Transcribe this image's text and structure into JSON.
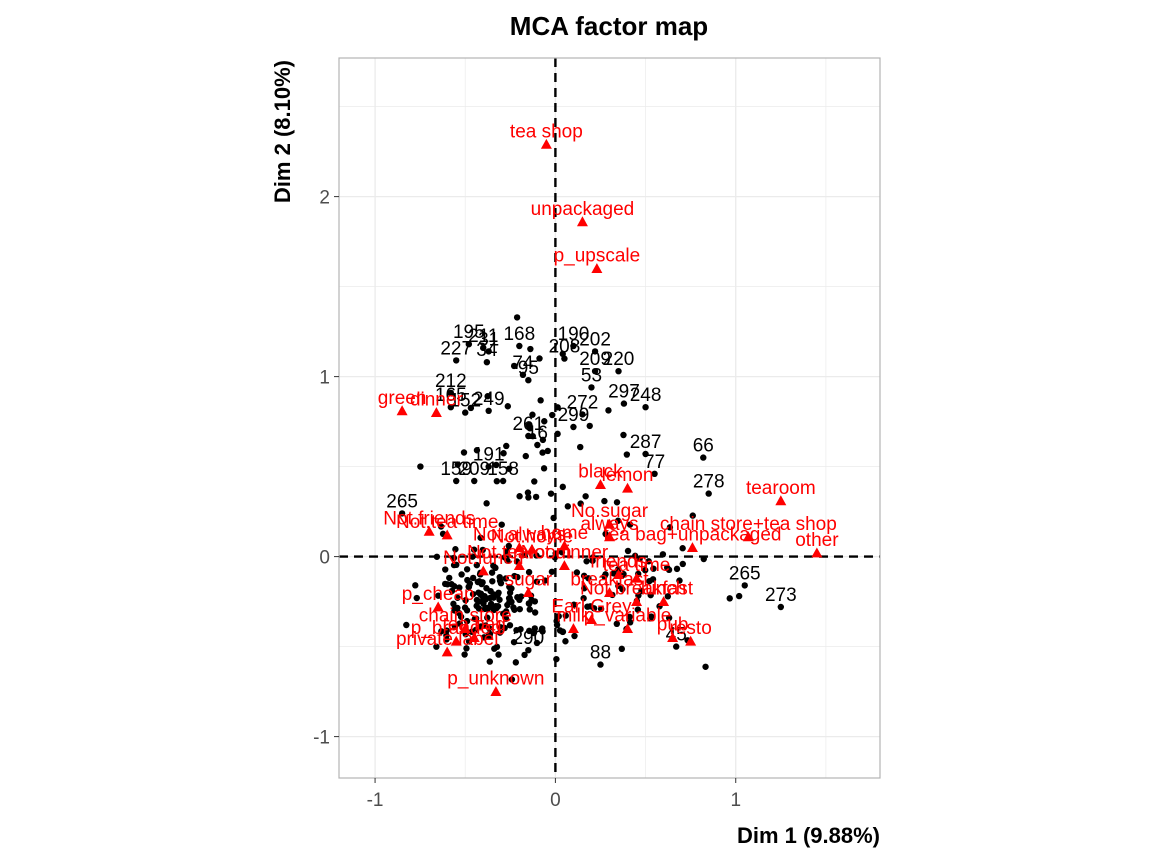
{
  "chart_data": {
    "type": "scatter",
    "title": "MCA factor map",
    "xlabel": "Dim 1 (9.88%)",
    "ylabel": "Dim 2 (8.10%)",
    "xlim": [
      -1.2,
      1.8
    ],
    "ylim": [
      -1.23,
      2.77
    ],
    "x_ticks": [
      -1,
      0,
      1
    ],
    "y_ticks": [
      -1,
      0,
      1,
      2
    ],
    "reference_lines": {
      "x": 0,
      "y": 0,
      "style": "dashed"
    },
    "grid": true,
    "colors": {
      "individuals": "#000000",
      "categories": "#ff0000",
      "grid": "#ebebeb",
      "panel_border": "#b3b3b3"
    },
    "categories_series": {
      "marker": "triangle",
      "points": [
        {
          "label": "tea shop",
          "x": -0.05,
          "y": 2.29
        },
        {
          "label": "unpackaged",
          "x": 0.15,
          "y": 1.86
        },
        {
          "label": "p_upscale",
          "x": 0.23,
          "y": 1.6
        },
        {
          "label": "green",
          "x": -0.85,
          "y": 0.81
        },
        {
          "label": "dinner",
          "x": -0.66,
          "y": 0.8
        },
        {
          "label": "tearoom",
          "x": 1.25,
          "y": 0.31
        },
        {
          "label": "chain store+tea shop",
          "x": 1.07,
          "y": 0.11
        },
        {
          "label": "tea bag+unpackaged",
          "x": 0.76,
          "y": 0.05
        },
        {
          "label": "other",
          "x": 1.45,
          "y": 0.02
        },
        {
          "label": "always",
          "x": 0.3,
          "y": 0.11
        },
        {
          "label": "home",
          "x": 0.05,
          "y": 0.06
        },
        {
          "label": "black",
          "x": 0.25,
          "y": 0.4
        },
        {
          "label": "lemon",
          "x": 0.4,
          "y": 0.38
        },
        {
          "label": "No.sugar",
          "x": 0.3,
          "y": 0.18
        },
        {
          "label": "Not.friends",
          "x": -0.7,
          "y": 0.14
        },
        {
          "label": "Not.tea time",
          "x": -0.6,
          "y": 0.12
        },
        {
          "label": "Not.always",
          "x": -0.2,
          "y": 0.05
        },
        {
          "label": "Not.home",
          "x": -0.13,
          "y": 0.04
        },
        {
          "label": "Not.tearoom",
          "x": -0.2,
          "y": -0.05
        },
        {
          "label": "Not.lunch",
          "x": -0.4,
          "y": -0.08
        },
        {
          "label": "sugar",
          "x": -0.15,
          "y": -0.2
        },
        {
          "label": "p_cheap",
          "x": -0.65,
          "y": -0.28
        },
        {
          "label": "chain store",
          "x": -0.5,
          "y": -0.4
        },
        {
          "label": "p_branded",
          "x": -0.55,
          "y": -0.47
        },
        {
          "label": "tea bag",
          "x": -0.45,
          "y": -0.45
        },
        {
          "label": "private label",
          "x": -0.6,
          "y": -0.53
        },
        {
          "label": "p_unknown",
          "x": -0.33,
          "y": -0.75
        },
        {
          "label": "friends",
          "x": 0.35,
          "y": -0.1
        },
        {
          "label": "tea time",
          "x": 0.45,
          "y": -0.12
        },
        {
          "label": "breakfast",
          "x": 0.3,
          "y": -0.2
        },
        {
          "label": "Not.breakfast",
          "x": 0.45,
          "y": -0.25
        },
        {
          "label": "lunch",
          "x": 0.6,
          "y": -0.25
        },
        {
          "label": "Earl Grey",
          "x": 0.2,
          "y": -0.35
        },
        {
          "label": "milk",
          "x": 0.1,
          "y": -0.4
        },
        {
          "label": "pub",
          "x": 0.65,
          "y": -0.45
        },
        {
          "label": "resto",
          "x": 0.75,
          "y": -0.47
        },
        {
          "label": "p_variable",
          "x": 0.4,
          "y": -0.4
        },
        {
          "label": "Not.dinner",
          "x": 0.05,
          "y": -0.05
        }
      ]
    },
    "individuals_labeled": [
      {
        "label": "195",
        "x": -0.48,
        "y": 1.18
      },
      {
        "label": "211",
        "x": -0.4,
        "y": 1.16
      },
      {
        "label": "31",
        "x": -0.37,
        "y": 1.14
      },
      {
        "label": "168",
        "x": -0.2,
        "y": 1.17
      },
      {
        "label": "190",
        "x": 0.1,
        "y": 1.17
      },
      {
        "label": "202",
        "x": 0.22,
        "y": 1.14
      },
      {
        "label": "227",
        "x": -0.55,
        "y": 1.09
      },
      {
        "label": "34",
        "x": -0.38,
        "y": 1.08
      },
      {
        "label": "208",
        "x": 0.05,
        "y": 1.1
      },
      {
        "label": "74",
        "x": -0.18,
        "y": 1.01
      },
      {
        "label": "95",
        "x": -0.15,
        "y": 0.98
      },
      {
        "label": "209",
        "x": 0.22,
        "y": 1.03
      },
      {
        "label": "220",
        "x": 0.35,
        "y": 1.03
      },
      {
        "label": "53",
        "x": 0.2,
        "y": 0.94
      },
      {
        "label": "212",
        "x": -0.58,
        "y": 0.91
      },
      {
        "label": "165",
        "x": -0.58,
        "y": 0.83
      },
      {
        "label": "152",
        "x": -0.5,
        "y": 0.8
      },
      {
        "label": "249",
        "x": -0.37,
        "y": 0.81
      },
      {
        "label": "297",
        "x": 0.38,
        "y": 0.85
      },
      {
        "label": "248",
        "x": 0.5,
        "y": 0.83
      },
      {
        "label": "272",
        "x": 0.15,
        "y": 0.79
      },
      {
        "label": "299",
        "x": 0.1,
        "y": 0.72
      },
      {
        "label": "261",
        "x": -0.15,
        "y": 0.67
      },
      {
        "label": "16",
        "x": -0.1,
        "y": 0.62
      },
      {
        "label": "287",
        "x": 0.5,
        "y": 0.57
      },
      {
        "label": "66",
        "x": 0.82,
        "y": 0.55
      },
      {
        "label": "191",
        "x": -0.37,
        "y": 0.5
      },
      {
        "label": "159",
        "x": -0.55,
        "y": 0.42
      },
      {
        "label": "209",
        "x": -0.45,
        "y": 0.42
      },
      {
        "label": "158",
        "x": -0.29,
        "y": 0.42
      },
      {
        "label": "77",
        "x": 0.55,
        "y": 0.46
      },
      {
        "label": "278",
        "x": 0.85,
        "y": 0.35
      },
      {
        "label": "265",
        "x": -0.85,
        "y": 0.24
      },
      {
        "label": "265",
        "x": 1.05,
        "y": -0.16
      },
      {
        "label": "273",
        "x": 1.25,
        "y": -0.28
      },
      {
        "label": "290",
        "x": -0.15,
        "y": -0.52
      },
      {
        "label": "88",
        "x": 0.25,
        "y": -0.6
      },
      {
        "label": "45",
        "x": 0.67,
        "y": -0.5
      }
    ],
    "individuals_unlabeled_count": 300
  }
}
